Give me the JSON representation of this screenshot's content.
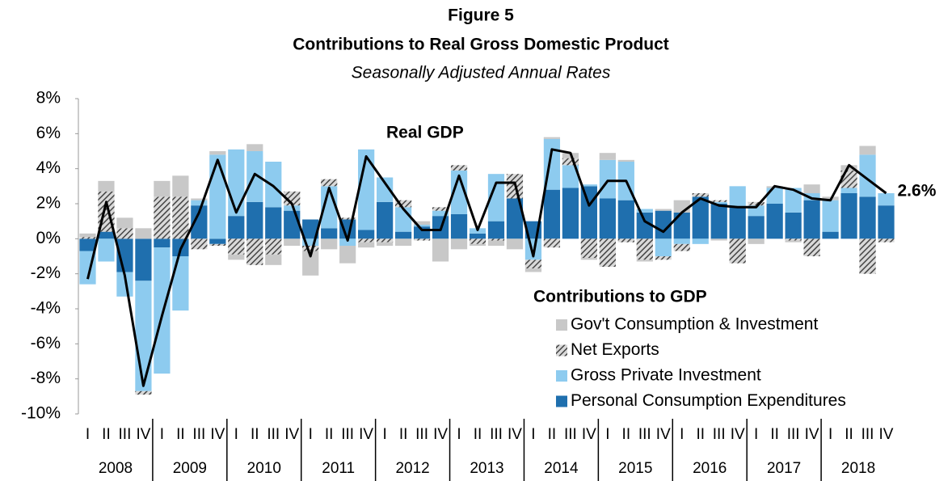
{
  "chart_data": {
    "type": "bar",
    "stacked": true,
    "title": "Figure 5",
    "subtitle": "Contributions to Real Gross Domestic Product",
    "subtitle2": "Seasonally Adjusted Annual Rates",
    "categories": [
      "I",
      "II",
      "III",
      "IV",
      "I",
      "II",
      "III",
      "IV",
      "I",
      "II",
      "III",
      "IV",
      "I",
      "II",
      "III",
      "IV",
      "I",
      "II",
      "III",
      "IV",
      "I",
      "II",
      "III",
      "IV",
      "I",
      "II",
      "III",
      "IV",
      "I",
      "II",
      "III",
      "IV",
      "I",
      "II",
      "III",
      "IV",
      "I",
      "II",
      "III",
      "IV",
      "I",
      "II",
      "III",
      "IV"
    ],
    "years": [
      "2008",
      "2009",
      "2010",
      "2011",
      "2012",
      "2013",
      "2014",
      "2015",
      "2016",
      "2017",
      "2018"
    ],
    "ylim": [
      -10,
      8
    ],
    "yticks": [
      {
        "value": -10,
        "label": "-10%"
      },
      {
        "value": -8,
        "label": "-8%"
      },
      {
        "value": -6,
        "label": "-6%"
      },
      {
        "value": -4,
        "label": "-4%"
      },
      {
        "value": -2,
        "label": "-2%"
      },
      {
        "value": 0,
        "label": "0%"
      },
      {
        "value": 2,
        "label": "2%"
      },
      {
        "value": 4,
        "label": "4%"
      },
      {
        "value": 6,
        "label": "6%"
      },
      {
        "value": 8,
        "label": "8%"
      }
    ],
    "legend_title": "Contributions to GDP",
    "legend": "lower right",
    "series": [
      {
        "name": "Personal Consumption Expendi­tures",
        "color": "#1f6fae",
        "values": [
          -0.7,
          0.4,
          -1.9,
          -2.4,
          -0.5,
          -1.0,
          1.9,
          -0.3,
          1.3,
          2.1,
          1.8,
          1.6,
          1.1,
          0.6,
          1.1,
          0.5,
          2.1,
          0.4,
          0.7,
          1.3,
          1.4,
          0.3,
          1.0,
          2.3,
          1.0,
          2.8,
          2.9,
          3.0,
          2.3,
          2.2,
          1.5,
          1.6,
          1.5,
          2.4,
          2.0,
          1.8,
          1.3,
          2.0,
          1.5,
          2.2,
          0.4,
          2.6,
          2.4,
          1.9
        ]
      },
      {
        "name": "Gross Private Investment",
        "color": "#8dcbef",
        "values": [
          -1.9,
          -1.3,
          -1.4,
          -6.3,
          -7.2,
          -3.1,
          0.3,
          4.8,
          3.8,
          2.9,
          2.6,
          0.3,
          -0.4,
          2.4,
          -0.4,
          4.6,
          1.4,
          1.4,
          0.1,
          0.3,
          2.5,
          0.3,
          2.7,
          0.0,
          -1.2,
          2.9,
          1.3,
          0.1,
          2.2,
          2.2,
          0.2,
          -1.0,
          -0.3,
          -0.3,
          0.1,
          1.2,
          0.6,
          0.9,
          1.4,
          0.4,
          1.8,
          0.3,
          2.4,
          0.7
        ]
      },
      {
        "name": "Net Exports",
        "color": "#555555",
        "hatch": true,
        "values": [
          0.1,
          2.3,
          0.6,
          -0.2,
          2.4,
          2.4,
          -0.6,
          -0.1,
          -0.9,
          -1.5,
          -0.9,
          0.8,
          -0.3,
          0.4,
          0.1,
          -0.2,
          -0.2,
          0.4,
          -0.1,
          0.2,
          0.3,
          -0.3,
          -0.1,
          1.4,
          -0.5,
          -0.5,
          0.4,
          -1.1,
          -1.6,
          -0.2,
          -1.2,
          -0.2,
          -0.4,
          0.2,
          0.1,
          -1.4,
          0.2,
          0.0,
          -0.1,
          -1.0,
          0.0,
          1.0,
          -2.0,
          -0.2
        ]
      },
      {
        "name": "Gov't Consumption & Investment",
        "color": "#c8c8c8",
        "values": [
          0.2,
          0.6,
          0.6,
          0.6,
          0.9,
          1.2,
          0.1,
          0.2,
          -0.3,
          0.4,
          -0.6,
          -0.4,
          -1.4,
          -0.6,
          -1.0,
          -0.3,
          -0.2,
          -0.4,
          0.2,
          -1.3,
          -0.6,
          -0.1,
          -0.3,
          -0.6,
          -0.2,
          0.1,
          0.3,
          -0.1,
          0.4,
          0.1,
          -0.1,
          0.1,
          0.7,
          0.0,
          -0.1,
          0.0,
          -0.3,
          0.1,
          -0.1,
          0.5,
          0.2,
          0.3,
          0.5,
          0.0
        ]
      },
      {
        "name": "Real GDP",
        "type": "line",
        "color": "#000000",
        "values": [
          -2.3,
          2.1,
          -2.1,
          -8.4,
          -4.4,
          -0.6,
          1.5,
          4.5,
          1.5,
          3.7,
          3.0,
          2.0,
          -1.0,
          2.9,
          -0.1,
          4.7,
          3.2,
          1.7,
          0.5,
          0.5,
          3.6,
          0.5,
          3.2,
          3.2,
          -1.0,
          5.1,
          4.9,
          1.9,
          3.3,
          3.3,
          1.0,
          0.4,
          1.5,
          2.3,
          1.9,
          1.8,
          1.8,
          3.0,
          2.8,
          2.3,
          2.2,
          4.2,
          3.4,
          2.6
        ],
        "value_labels": [
          null,
          null,
          null,
          null,
          null,
          null,
          null,
          null,
          null,
          null,
          null,
          null,
          null,
          null,
          null,
          null,
          null,
          null,
          null,
          null,
          null,
          null,
          null,
          null,
          null,
          null,
          null,
          null,
          null,
          null,
          null,
          null,
          null,
          null,
          null,
          null,
          null,
          null,
          null,
          null,
          null,
          null,
          null,
          "2.6%"
        ]
      }
    ]
  }
}
